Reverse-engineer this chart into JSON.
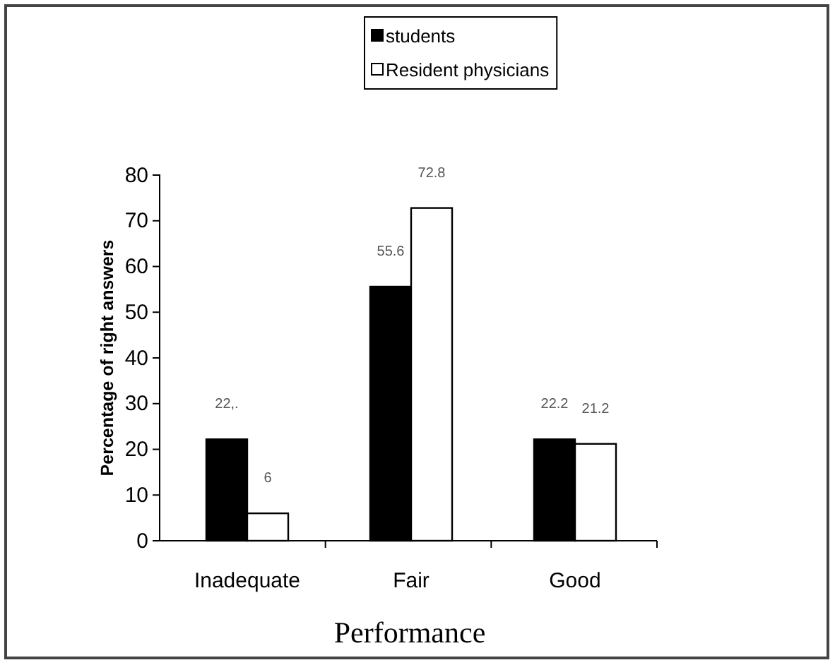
{
  "chart_data": {
    "type": "bar",
    "xlabel": "Performance",
    "ylabel": "Percentage of right answers",
    "categories": [
      "Inadequate",
      "Fair",
      "Good"
    ],
    "series": [
      {
        "name": "students",
        "color": "#000000",
        "values": [
          22.2,
          55.6,
          22.2
        ],
        "value_labels": [
          "22,.",
          "55.6",
          "22.2"
        ]
      },
      {
        "name": "Resident physicians",
        "color": "#ffffff",
        "values": [
          6,
          72.8,
          21.2
        ],
        "value_labels": [
          "6",
          "72.8",
          "21.2"
        ]
      }
    ],
    "ylim": [
      0,
      80
    ],
    "yticks": [
      0,
      10,
      20,
      30,
      40,
      50,
      60,
      70,
      80
    ],
    "legend": "top",
    "grid": false
  }
}
